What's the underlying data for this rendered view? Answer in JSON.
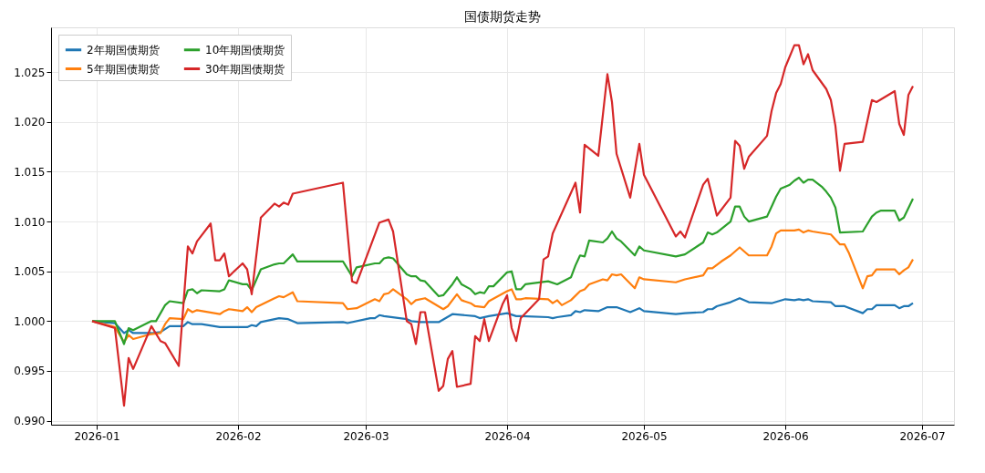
{
  "chart_data": {
    "type": "line",
    "title": "国债期货走势",
    "legend": "top left",
    "grid": true,
    "marker": "none",
    "line_style": "solid",
    "xlim": [
      "2025-12-22",
      "2026-07-08"
    ],
    "ylim": [
      0.9896,
      1.0295
    ],
    "xticks": [
      {
        "value": "2026-01-01",
        "label": "2026-01"
      },
      {
        "value": "2026-02-01",
        "label": "2026-02"
      },
      {
        "value": "2026-03-01",
        "label": "2026-03"
      },
      {
        "value": "2026-04-01",
        "label": "2026-04"
      },
      {
        "value": "2026-05-01",
        "label": "2026-05"
      },
      {
        "value": "2026-06-01",
        "label": "2026-06"
      },
      {
        "value": "2026-07-01",
        "label": "2026-07"
      }
    ],
    "yticks": [
      {
        "value": 0.99,
        "label": "0.990"
      },
      {
        "value": 0.995,
        "label": "0.995"
      },
      {
        "value": 1.0,
        "label": "1.000"
      },
      {
        "value": 1.005,
        "label": "1.005"
      },
      {
        "value": 1.01,
        "label": "1.010"
      },
      {
        "value": 1.015,
        "label": "1.015"
      },
      {
        "value": 1.02,
        "label": "1.020"
      },
      {
        "value": 1.025,
        "label": "1.025"
      }
    ],
    "series": [
      {
        "name": "2年期国债期货",
        "color": "#1f77b4",
        "x": [
          "2025-12-31",
          "2026-01-05",
          "2026-01-07",
          "2026-01-08",
          "2026-01-09",
          "2026-01-13",
          "2026-01-15",
          "2026-01-17",
          "2026-01-20",
          "2026-01-21",
          "2026-01-22",
          "2026-01-24",
          "2026-01-28",
          "2026-02-03",
          "2026-02-04",
          "2026-02-05",
          "2026-02-06",
          "2026-02-10",
          "2026-02-12",
          "2026-02-14",
          "2026-02-24",
          "2026-02-25",
          "2026-03-02",
          "2026-03-03",
          "2026-03-04",
          "2026-03-05",
          "2026-03-10",
          "2026-03-11",
          "2026-03-13",
          "2026-03-17",
          "2026-03-20",
          "2026-03-25",
          "2026-03-26",
          "2026-03-28",
          "2026-04-01",
          "2026-04-03",
          "2026-04-04",
          "2026-04-10",
          "2026-04-11",
          "2026-04-12",
          "2026-04-15",
          "2026-04-16",
          "2026-04-17",
          "2026-04-18",
          "2026-04-21",
          "2026-04-23",
          "2026-04-25",
          "2026-04-28",
          "2026-04-30",
          "2026-05-01",
          "2026-05-08",
          "2026-05-10",
          "2026-05-14",
          "2026-05-15",
          "2026-05-16",
          "2026-05-17",
          "2026-05-20",
          "2026-05-22",
          "2026-05-24",
          "2026-05-29",
          "2026-06-01",
          "2026-06-03",
          "2026-06-04",
          "2026-06-05",
          "2026-06-06",
          "2026-06-07",
          "2026-06-11",
          "2026-06-12",
          "2026-06-14",
          "2026-06-18",
          "2026-06-19",
          "2026-06-20",
          "2026-06-21",
          "2026-06-25",
          "2026-06-26",
          "2026-06-27",
          "2026-06-28",
          "2026-06-29"
        ],
        "values": [
          1.0,
          0.9998,
          0.9988,
          0.9991,
          0.9988,
          0.9988,
          0.9989,
          0.9995,
          0.9995,
          0.9999,
          0.9997,
          0.9997,
          0.9994,
          0.9994,
          0.9996,
          0.9995,
          0.9999,
          1.0003,
          1.0002,
          0.9998,
          0.9999,
          0.9998,
          1.0003,
          1.0003,
          1.0006,
          1.0005,
          1.0002,
          1.0,
          0.9999,
          0.9999,
          1.0007,
          1.0005,
          1.0003,
          1.0005,
          1.0008,
          1.0005,
          1.0005,
          1.0004,
          1.0003,
          1.0004,
          1.0006,
          1.001,
          1.0009,
          1.0011,
          1.001,
          1.0014,
          1.0014,
          1.0009,
          1.0013,
          1.001,
          1.0007,
          1.0008,
          1.0009,
          1.0012,
          1.0012,
          1.0015,
          1.0019,
          1.0023,
          1.0019,
          1.0018,
          1.0022,
          1.0021,
          1.0022,
          1.0021,
          1.0022,
          1.002,
          1.0019,
          1.0015,
          1.0015,
          1.0008,
          1.0012,
          1.0012,
          1.0016,
          1.0016,
          1.0013,
          1.0015,
          1.0015,
          1.0018
        ]
      },
      {
        "name": "5年期国债期货",
        "color": "#ff7f0e",
        "x": [
          "2025-12-31",
          "2026-01-05",
          "2026-01-07",
          "2026-01-08",
          "2026-01-09",
          "2026-01-13",
          "2026-01-15",
          "2026-01-16",
          "2026-01-17",
          "2026-01-20",
          "2026-01-21",
          "2026-01-22",
          "2026-01-23",
          "2026-01-28",
          "2026-01-29",
          "2026-01-30",
          "2026-02-02",
          "2026-02-03",
          "2026-02-04",
          "2026-02-05",
          "2026-02-09",
          "2026-02-10",
          "2026-02-11",
          "2026-02-13",
          "2026-02-14",
          "2026-02-24",
          "2026-02-25",
          "2026-02-27",
          "2026-03-03",
          "2026-03-04",
          "2026-03-05",
          "2026-03-06",
          "2026-03-07",
          "2026-03-10",
          "2026-03-11",
          "2026-03-12",
          "2026-03-14",
          "2026-03-18",
          "2026-03-19",
          "2026-03-21",
          "2026-03-22",
          "2026-03-24",
          "2026-03-25",
          "2026-03-27",
          "2026-03-28",
          "2026-04-01",
          "2026-04-02",
          "2026-04-03",
          "2026-04-04",
          "2026-04-05",
          "2026-04-10",
          "2026-04-11",
          "2026-04-12",
          "2026-04-13",
          "2026-04-15",
          "2026-04-17",
          "2026-04-18",
          "2026-04-19",
          "2026-04-22",
          "2026-04-23",
          "2026-04-24",
          "2026-04-25",
          "2026-04-26",
          "2026-04-29",
          "2026-04-30",
          "2026-05-01",
          "2026-05-08",
          "2026-05-10",
          "2026-05-14",
          "2026-05-15",
          "2026-05-16",
          "2026-05-18",
          "2026-05-20",
          "2026-05-22",
          "2026-05-24",
          "2026-05-28",
          "2026-05-29",
          "2026-05-30",
          "2026-05-31",
          "2026-06-03",
          "2026-06-04",
          "2026-06-05",
          "2026-06-06",
          "2026-06-07",
          "2026-06-11",
          "2026-06-12",
          "2026-06-13",
          "2026-06-14",
          "2026-06-15",
          "2026-06-18",
          "2026-06-19",
          "2026-06-20",
          "2026-06-21",
          "2026-06-25",
          "2026-06-26",
          "2026-06-27",
          "2026-06-28",
          "2026-06-29"
        ],
        "values": [
          1.0,
          0.9994,
          0.9979,
          0.9986,
          0.9982,
          0.9987,
          0.9988,
          0.9997,
          1.0003,
          1.0002,
          1.0012,
          1.0009,
          1.0011,
          1.0007,
          1.001,
          1.0012,
          1.001,
          1.0014,
          1.0009,
          1.0014,
          1.0023,
          1.0025,
          1.0024,
          1.0029,
          1.002,
          1.0018,
          1.0012,
          1.0013,
          1.0022,
          1.002,
          1.0027,
          1.0028,
          1.0032,
          1.0022,
          1.0017,
          1.0021,
          1.0023,
          1.0012,
          1.0015,
          1.0027,
          1.0021,
          1.0018,
          1.0015,
          1.0014,
          1.002,
          1.003,
          1.0032,
          1.0022,
          1.0022,
          1.0023,
          1.0022,
          1.0018,
          1.0021,
          1.0016,
          1.0021,
          1.003,
          1.0032,
          1.0037,
          1.0042,
          1.0041,
          1.0047,
          1.0046,
          1.0047,
          1.0033,
          1.0044,
          1.0042,
          1.0039,
          1.0042,
          1.0046,
          1.0053,
          1.0053,
          1.006,
          1.0066,
          1.0074,
          1.0066,
          1.0066,
          1.0075,
          1.0088,
          1.0091,
          1.0091,
          1.0092,
          1.0089,
          1.0091,
          1.009,
          1.0087,
          1.0082,
          1.0077,
          1.0077,
          1.0068,
          1.0033,
          1.0045,
          1.0046,
          1.0052,
          1.0052,
          1.0047,
          1.0051,
          1.0054,
          1.0062
        ]
      },
      {
        "name": "10年期国债期货",
        "color": "#2ca02c",
        "x": [
          "2025-12-31",
          "2026-01-05",
          "2026-01-07",
          "2026-01-08",
          "2026-01-09",
          "2026-01-13",
          "2026-01-14",
          "2026-01-16",
          "2026-01-17",
          "2026-01-20",
          "2026-01-21",
          "2026-01-22",
          "2026-01-23",
          "2026-01-24",
          "2026-01-28",
          "2026-01-29",
          "2026-01-30",
          "2026-02-02",
          "2026-02-03",
          "2026-02-04",
          "2026-02-06",
          "2026-02-09",
          "2026-02-10",
          "2026-02-11",
          "2026-02-13",
          "2026-02-14",
          "2026-02-24",
          "2026-02-26",
          "2026-02-27",
          "2026-03-03",
          "2026-03-04",
          "2026-03-05",
          "2026-03-06",
          "2026-03-07",
          "2026-03-10",
          "2026-03-11",
          "2026-03-12",
          "2026-03-13",
          "2026-03-14",
          "2026-03-17",
          "2026-03-18",
          "2026-03-20",
          "2026-03-21",
          "2026-03-22",
          "2026-03-24",
          "2026-03-25",
          "2026-03-26",
          "2026-03-27",
          "2026-03-28",
          "2026-03-29",
          "2026-04-01",
          "2026-04-02",
          "2026-04-03",
          "2026-04-04",
          "2026-04-05",
          "2026-04-10",
          "2026-04-12",
          "2026-04-15",
          "2026-04-16",
          "2026-04-17",
          "2026-04-18",
          "2026-04-19",
          "2026-04-22",
          "2026-04-23",
          "2026-04-24",
          "2026-04-25",
          "2026-04-26",
          "2026-04-29",
          "2026-04-30",
          "2026-05-01",
          "2026-05-08",
          "2026-05-10",
          "2026-05-14",
          "2026-05-15",
          "2026-05-16",
          "2026-05-17",
          "2026-05-20",
          "2026-05-21",
          "2026-05-22",
          "2026-05-23",
          "2026-05-24",
          "2026-05-28",
          "2026-05-29",
          "2026-05-30",
          "2026-05-31",
          "2026-06-02",
          "2026-06-03",
          "2026-06-04",
          "2026-06-05",
          "2026-06-06",
          "2026-06-07",
          "2026-06-09",
          "2026-06-10",
          "2026-06-11",
          "2026-06-12",
          "2026-06-13",
          "2026-06-18",
          "2026-06-20",
          "2026-06-21",
          "2026-06-22",
          "2026-06-25",
          "2026-06-26",
          "2026-06-27",
          "2026-06-29"
        ],
        "values": [
          1.0,
          1.0,
          0.9977,
          0.9993,
          0.9991,
          1.0,
          1.0,
          1.0016,
          1.002,
          1.0018,
          1.0031,
          1.0032,
          1.0028,
          1.0031,
          1.003,
          1.0032,
          1.0041,
          1.0037,
          1.0037,
          1.0031,
          1.0052,
          1.0057,
          1.0058,
          1.0058,
          1.0067,
          1.006,
          1.006,
          1.0045,
          1.0054,
          1.0058,
          1.0058,
          1.0063,
          1.0064,
          1.0063,
          1.0047,
          1.0045,
          1.0045,
          1.0041,
          1.004,
          1.0025,
          1.0026,
          1.0037,
          1.0044,
          1.0037,
          1.0032,
          1.0027,
          1.0029,
          1.0028,
          1.0035,
          1.0035,
          1.0049,
          1.005,
          1.0032,
          1.0032,
          1.0037,
          1.004,
          1.0037,
          1.0044,
          1.0056,
          1.0066,
          1.0065,
          1.0081,
          1.0079,
          1.0083,
          1.009,
          1.0083,
          1.008,
          1.0066,
          1.0075,
          1.0071,
          1.0065,
          1.0067,
          1.0079,
          1.0089,
          1.0087,
          1.0089,
          1.01,
          1.0115,
          1.0115,
          1.0105,
          1.01,
          1.0105,
          1.0115,
          1.0125,
          1.0133,
          1.0137,
          1.0141,
          1.0144,
          1.0139,
          1.0142,
          1.0142,
          1.0135,
          1.013,
          1.0124,
          1.0114,
          1.0089,
          1.009,
          1.0105,
          1.0109,
          1.0111,
          1.0111,
          1.0101,
          1.0104,
          1.0123
        ]
      },
      {
        "name": "30年期国债期货",
        "color": "#d62728",
        "x": [
          "2025-12-31",
          "2026-01-05",
          "2026-01-07",
          "2026-01-08",
          "2026-01-09",
          "2026-01-13",
          "2026-01-15",
          "2026-01-16",
          "2026-01-19",
          "2026-01-21",
          "2026-01-22",
          "2026-01-23",
          "2026-01-26",
          "2026-01-27",
          "2026-01-28",
          "2026-01-29",
          "2026-01-30",
          "2026-02-02",
          "2026-02-03",
          "2026-02-04",
          "2026-02-06",
          "2026-02-09",
          "2026-02-10",
          "2026-02-11",
          "2026-02-12",
          "2026-02-13",
          "2026-02-24",
          "2026-02-26",
          "2026-02-27",
          "2026-03-04",
          "2026-03-06",
          "2026-03-07",
          "2026-03-10",
          "2026-03-11",
          "2026-03-12",
          "2026-03-13",
          "2026-03-14",
          "2026-03-17",
          "2026-03-18",
          "2026-03-19",
          "2026-03-20",
          "2026-03-21",
          "2026-03-24",
          "2026-03-25",
          "2026-03-26",
          "2026-03-27",
          "2026-03-28",
          "2026-03-31",
          "2026-04-01",
          "2026-04-02",
          "2026-04-03",
          "2026-04-04",
          "2026-04-08",
          "2026-04-09",
          "2026-04-10",
          "2026-04-11",
          "2026-04-16",
          "2026-04-17",
          "2026-04-18",
          "2026-04-21",
          "2026-04-23",
          "2026-04-24",
          "2026-04-25",
          "2026-04-28",
          "2026-04-30",
          "2026-05-01",
          "2026-05-08",
          "2026-05-09",
          "2026-05-10",
          "2026-05-14",
          "2026-05-15",
          "2026-05-17",
          "2026-05-20",
          "2026-05-21",
          "2026-05-22",
          "2026-05-23",
          "2026-05-24",
          "2026-05-28",
          "2026-05-29",
          "2026-05-30",
          "2026-05-31",
          "2026-06-01",
          "2026-06-03",
          "2026-06-04",
          "2026-06-05",
          "2026-06-06",
          "2026-06-07",
          "2026-06-10",
          "2026-06-11",
          "2026-06-12",
          "2026-06-13",
          "2026-06-14",
          "2026-06-18",
          "2026-06-20",
          "2026-06-21",
          "2026-06-25",
          "2026-06-26",
          "2026-06-27",
          "2026-06-28",
          "2026-06-29"
        ],
        "values": [
          1.0,
          0.9993,
          0.9915,
          0.9963,
          0.9952,
          0.9995,
          0.998,
          0.9978,
          0.9955,
          1.0075,
          1.0068,
          1.008,
          1.0098,
          1.0061,
          1.0061,
          1.0068,
          1.0045,
          1.0058,
          1.0052,
          1.0027,
          1.0104,
          1.0118,
          1.0115,
          1.0119,
          1.0117,
          1.0128,
          1.0139,
          1.004,
          1.0038,
          1.0099,
          1.0102,
          1.009,
          1.0,
          0.9997,
          0.9977,
          1.0009,
          1.0009,
          0.993,
          0.9935,
          0.9962,
          0.997,
          0.9934,
          0.9937,
          0.9985,
          0.998,
          1.0002,
          0.998,
          1.0017,
          1.0026,
          0.9993,
          0.998,
          1.0003,
          1.0022,
          1.0062,
          1.0065,
          1.0088,
          1.0139,
          1.0109,
          1.0177,
          1.0166,
          1.0248,
          1.022,
          1.0168,
          1.0124,
          1.0178,
          1.0147,
          1.0085,
          1.009,
          1.0084,
          1.0137,
          1.0143,
          1.0106,
          1.0124,
          1.0181,
          1.0176,
          1.0153,
          1.0165,
          1.0186,
          1.0211,
          1.0229,
          1.0238,
          1.0255,
          1.0277,
          1.0277,
          1.0258,
          1.0268,
          1.0252,
          1.0233,
          1.0222,
          1.0196,
          1.0151,
          1.0178,
          1.018,
          1.0222,
          1.022,
          1.0231,
          1.0198,
          1.0187,
          1.0227,
          1.0236
        ]
      }
    ]
  }
}
